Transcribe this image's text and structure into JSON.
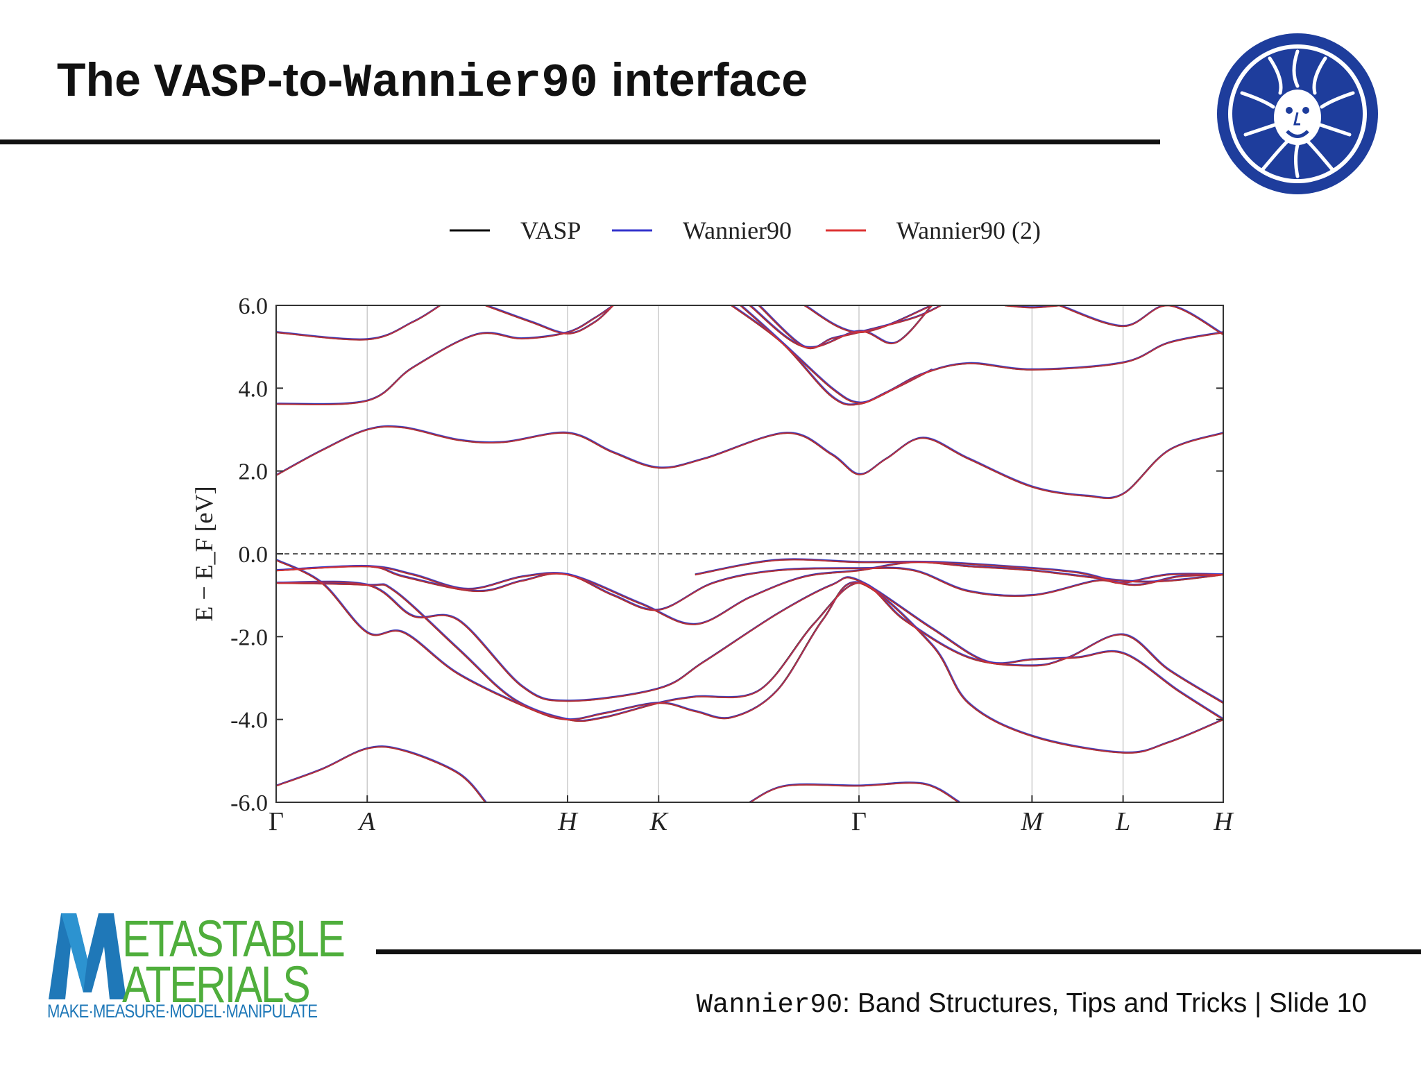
{
  "slide": {
    "title_prefix": "The ",
    "title_mono1": "VASP",
    "title_middle": "-to-",
    "title_mono2": "Wannier90",
    "title_suffix": " interface",
    "footer_mono": "Wannier90",
    "footer_text": ": Band Structures, Tips and Tricks | Slide 10"
  },
  "logo": {
    "big_letter_1": "M",
    "line1": "ETASTABLE",
    "big_letter_2": "M",
    "line2": "ATERIALS",
    "tagline": "MAKE·MEASURE·MODEL·MANIPULATE"
  },
  "chart_data": {
    "type": "line",
    "ylabel": "E − E_F [eV]",
    "ylim": [
      -6.0,
      6.0
    ],
    "yticks": [
      "6.0",
      "4.0",
      "2.0",
      "0.0",
      "-2.0",
      "-4.0",
      "-6.0"
    ],
    "x_labels": [
      "Γ",
      "A",
      "H",
      "K",
      "Γ",
      "M",
      "L",
      "H"
    ],
    "x_positions": [
      0,
      1,
      3.2,
      4.2,
      6.4,
      8.3,
      9.3,
      10.4
    ],
    "xlim": [
      0,
      10.4
    ],
    "fermi_level": 0.0,
    "legend": [
      "VASP",
      "Wannier90",
      "Wannier90 (2)"
    ],
    "legend_position": "top-center",
    "colors": {
      "VASP": "#000000",
      "Wannier90": "#3333cc",
      "Wannier90 (2)": "#dd3333",
      "fermi": "#222222"
    },
    "bands": [
      [
        [
          0,
          -5.6
        ],
        [
          0.5,
          -5.2
        ],
        [
          1,
          -4.7
        ],
        [
          1.4,
          -4.75
        ],
        [
          2,
          -5.3
        ],
        [
          2.3,
          -6.0
        ]
      ],
      [
        [
          5.2,
          -6.0
        ],
        [
          5.6,
          -5.6
        ],
        [
          6.4,
          -5.6
        ],
        [
          7.1,
          -5.55
        ],
        [
          7.5,
          -6.0
        ]
      ],
      [
        [
          0,
          -0.15
        ],
        [
          0.5,
          -0.7
        ],
        [
          1,
          -1.9
        ],
        [
          1.4,
          -1.9
        ],
        [
          2,
          -2.9
        ],
        [
          2.8,
          -3.75
        ],
        [
          3.2,
          -4.0
        ],
        [
          3.6,
          -3.85
        ],
        [
          4.2,
          -3.6
        ],
        [
          4.6,
          -3.8
        ],
        [
          5.0,
          -3.95
        ],
        [
          5.5,
          -3.3
        ],
        [
          6.0,
          -1.6
        ],
        [
          6.4,
          -0.7
        ],
        [
          7.2,
          -2.2
        ],
        [
          7.6,
          -3.6
        ],
        [
          8.3,
          -4.4
        ],
        [
          9.3,
          -4.8
        ],
        [
          9.8,
          -4.55
        ],
        [
          10.4,
          -4.0
        ]
      ],
      [
        [
          0,
          -0.7
        ],
        [
          1,
          -0.75
        ],
        [
          1.3,
          -0.9
        ],
        [
          2,
          -2.3
        ],
        [
          2.6,
          -3.5
        ],
        [
          3.2,
          -4.0
        ],
        [
          3.6,
          -3.95
        ],
        [
          4.2,
          -3.6
        ],
        [
          4.6,
          -3.45
        ],
        [
          5.3,
          -3.3
        ],
        [
          5.9,
          -1.7
        ],
        [
          6.4,
          -0.7
        ],
        [
          6.9,
          -1.6
        ],
        [
          7.6,
          -2.5
        ],
        [
          8.3,
          -2.7
        ],
        [
          8.7,
          -2.5
        ],
        [
          9.3,
          -1.95
        ],
        [
          9.8,
          -2.8
        ],
        [
          10.4,
          -3.6
        ]
      ],
      [
        [
          0,
          -0.7
        ],
        [
          1,
          -0.75
        ],
        [
          1.5,
          -1.5
        ],
        [
          2,
          -1.6
        ],
        [
          2.7,
          -3.2
        ],
        [
          3.2,
          -3.55
        ],
        [
          4.2,
          -3.25
        ],
        [
          4.7,
          -2.6
        ],
        [
          5.5,
          -1.45
        ],
        [
          6.1,
          -0.75
        ],
        [
          6.4,
          -0.65
        ],
        [
          7.2,
          -1.8
        ],
        [
          7.8,
          -2.6
        ],
        [
          8.3,
          -2.55
        ],
        [
          8.8,
          -2.5
        ],
        [
          9.3,
          -2.4
        ],
        [
          9.9,
          -3.3
        ],
        [
          10.4,
          -4.0
        ]
      ],
      [
        [
          0,
          -0.4
        ],
        [
          1,
          -0.3
        ],
        [
          1.5,
          -0.5
        ],
        [
          2.1,
          -0.85
        ],
        [
          2.7,
          -0.55
        ],
        [
          3.2,
          -0.5
        ],
        [
          3.7,
          -1.0
        ],
        [
          4.2,
          -1.35
        ],
        [
          4.8,
          -0.7
        ],
        [
          5.5,
          -0.4
        ],
        [
          6.4,
          -0.35
        ],
        [
          7.0,
          -0.4
        ],
        [
          7.6,
          -0.9
        ],
        [
          8.3,
          -1.0
        ],
        [
          9.0,
          -0.65
        ],
        [
          9.3,
          -0.7
        ],
        [
          9.8,
          -0.5
        ],
        [
          10.4,
          -0.5
        ]
      ],
      [
        [
          0,
          -0.4
        ],
        [
          1,
          -0.3
        ],
        [
          1.4,
          -0.55
        ],
        [
          2.2,
          -0.9
        ],
        [
          2.7,
          -0.65
        ],
        [
          3.2,
          -0.5
        ],
        [
          4.0,
          -1.2
        ],
        [
          4.6,
          -1.7
        ],
        [
          5.2,
          -1.05
        ],
        [
          5.8,
          -0.55
        ],
        [
          6.4,
          -0.4
        ],
        [
          7.0,
          -0.2
        ],
        [
          7.6,
          -0.3
        ],
        [
          8.3,
          -0.4
        ],
        [
          9.3,
          -0.65
        ],
        [
          9.8,
          -0.65
        ],
        [
          10.4,
          -0.5
        ]
      ],
      [
        [
          4.6,
          -0.5
        ],
        [
          5.5,
          -0.15
        ],
        [
          6.4,
          -0.2
        ],
        [
          7.2,
          -0.2
        ],
        [
          8.0,
          -0.3
        ],
        [
          8.8,
          -0.45
        ],
        [
          9.4,
          -0.75
        ],
        [
          9.9,
          -0.55
        ],
        [
          10.4,
          -0.5
        ]
      ],
      [
        [
          0,
          1.9
        ],
        [
          0.5,
          2.5
        ],
        [
          1,
          3.0
        ],
        [
          1.4,
          3.05
        ],
        [
          2,
          2.75
        ],
        [
          2.5,
          2.7
        ],
        [
          3.2,
          2.92
        ],
        [
          3.7,
          2.45
        ],
        [
          4.2,
          2.08
        ],
        [
          4.7,
          2.3
        ],
        [
          5.6,
          2.92
        ],
        [
          6.1,
          2.4
        ],
        [
          6.4,
          1.92
        ],
        [
          6.7,
          2.3
        ],
        [
          7.1,
          2.8
        ],
        [
          7.6,
          2.3
        ],
        [
          8.3,
          1.62
        ],
        [
          8.9,
          1.4
        ],
        [
          9.3,
          1.45
        ],
        [
          9.8,
          2.5
        ],
        [
          10.4,
          2.92
        ]
      ],
      [
        [
          0,
          3.62
        ],
        [
          1,
          3.7
        ],
        [
          1.5,
          4.5
        ],
        [
          2.2,
          5.3
        ],
        [
          2.7,
          5.2
        ],
        [
          3.2,
          5.35
        ],
        [
          3.5,
          5.7
        ],
        [
          3.7,
          6.0
        ]
      ],
      [
        [
          0,
          5.35
        ],
        [
          1,
          5.18
        ],
        [
          1.5,
          5.6
        ],
        [
          1.8,
          6.0
        ]
      ],
      [
        [
          2.3,
          6.0
        ],
        [
          2.8,
          5.6
        ],
        [
          3.2,
          5.32
        ],
        [
          3.5,
          5.6
        ],
        [
          3.7,
          6.0
        ]
      ],
      [
        [
          5.0,
          6.0
        ],
        [
          5.5,
          5.2
        ],
        [
          6.1,
          4.0
        ],
        [
          6.4,
          3.65
        ],
        [
          6.7,
          3.9
        ],
        [
          7.1,
          4.35
        ],
        [
          7.6,
          4.6
        ],
        [
          8.3,
          4.45
        ],
        [
          9.3,
          4.62
        ],
        [
          9.8,
          5.1
        ],
        [
          10.4,
          5.35
        ]
      ],
      [
        [
          5.1,
          6.0
        ],
        [
          5.6,
          5.0
        ],
        [
          6.1,
          3.8
        ],
        [
          6.4,
          3.62
        ],
        [
          6.8,
          4.0
        ],
        [
          7.2,
          4.45
        ]
      ],
      [
        [
          5.2,
          6.0
        ],
        [
          5.8,
          5.0
        ],
        [
          6.4,
          5.38
        ],
        [
          6.8,
          5.1
        ],
        [
          7.2,
          6.0
        ]
      ],
      [
        [
          5.8,
          6.0
        ],
        [
          6.4,
          5.35
        ],
        [
          7.2,
          6.0
        ]
      ],
      [
        [
          5.3,
          6.0
        ],
        [
          5.8,
          5.0
        ],
        [
          6.1,
          5.2
        ],
        [
          6.4,
          5.35
        ],
        [
          7.0,
          5.7
        ],
        [
          7.3,
          6.0
        ]
      ],
      [
        [
          8.0,
          6.0
        ],
        [
          8.3,
          5.95
        ],
        [
          8.6,
          6.0
        ]
      ],
      [
        [
          8.6,
          6.0
        ],
        [
          9.3,
          5.5
        ],
        [
          9.8,
          6.0
        ],
        [
          10.4,
          5.3
        ]
      ]
    ]
  }
}
